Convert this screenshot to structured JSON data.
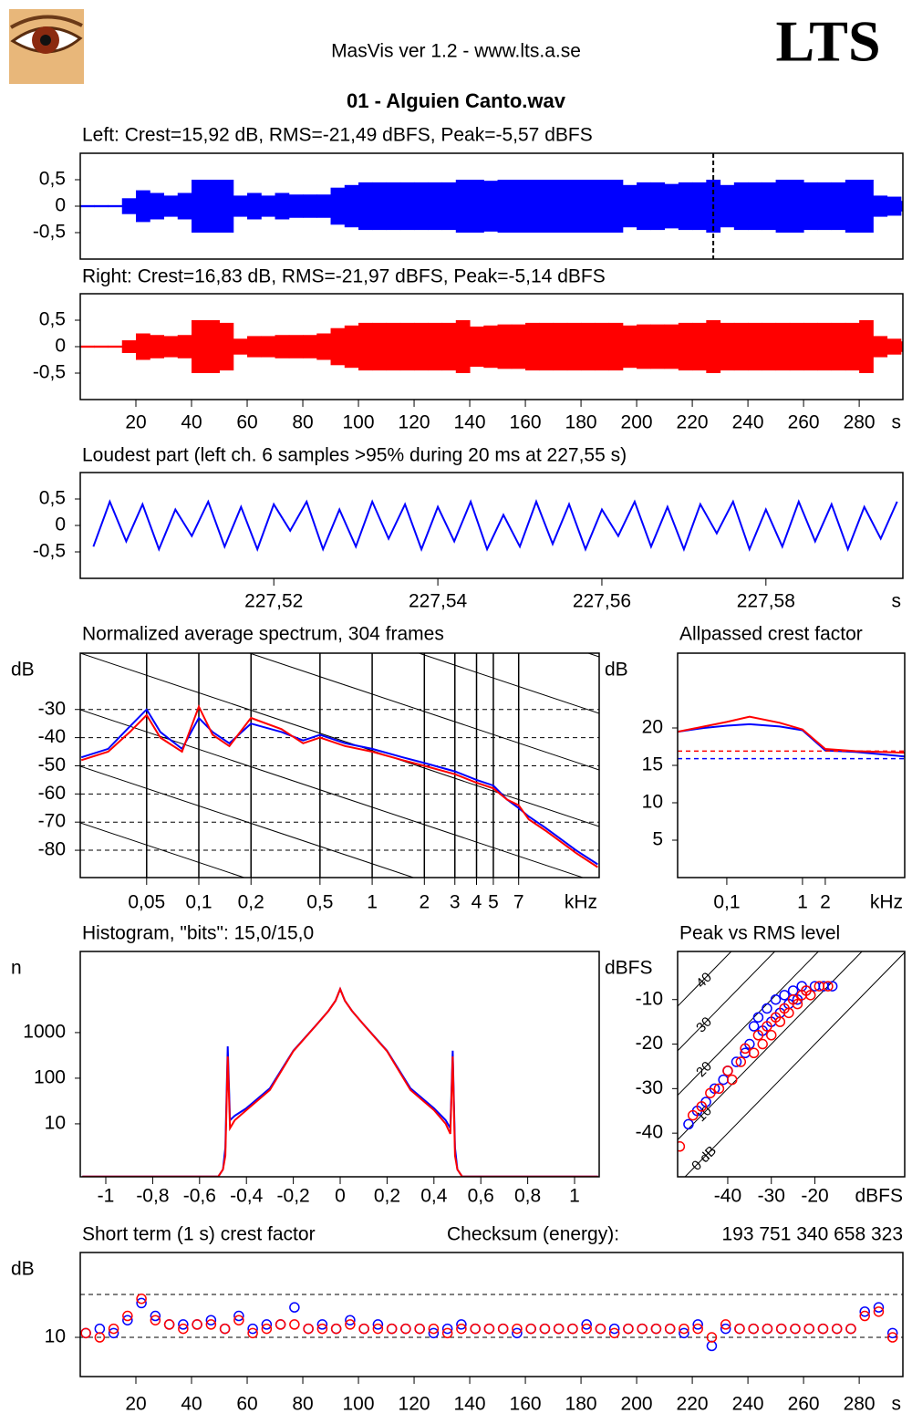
{
  "app_title": "MasVis ver 1.2 - www.lts.a.se",
  "logo_text": "LTS",
  "file_name": "01 - Alguien Canto.wav",
  "chart_data": [
    {
      "type": "envelope",
      "title": "Left: Crest=15,92 dB, RMS=-21,49 dBFS, Peak=-5,57 dBFS",
      "color": "#0000ff",
      "x": [
        0,
        5,
        10,
        15,
        20,
        25,
        30,
        35,
        40,
        45,
        50,
        55,
        60,
        65,
        70,
        75,
        80,
        85,
        90,
        95,
        100,
        105,
        110,
        115,
        120,
        125,
        130,
        135,
        140,
        145,
        150,
        155,
        160,
        165,
        170,
        175,
        180,
        185,
        190,
        195,
        200,
        205,
        210,
        215,
        220,
        225,
        230,
        235,
        240,
        245,
        250,
        255,
        260,
        265,
        270,
        275,
        280,
        285,
        290,
        295
      ],
      "values": [
        0.02,
        0.02,
        0.02,
        0.15,
        0.3,
        0.25,
        0.2,
        0.25,
        0.5,
        0.5,
        0.5,
        0.2,
        0.25,
        0.2,
        0.25,
        0.22,
        0.22,
        0.22,
        0.35,
        0.4,
        0.45,
        0.45,
        0.45,
        0.45,
        0.45,
        0.45,
        0.45,
        0.5,
        0.5,
        0.48,
        0.5,
        0.5,
        0.5,
        0.5,
        0.5,
        0.5,
        0.5,
        0.5,
        0.5,
        0.4,
        0.45,
        0.45,
        0.42,
        0.45,
        0.45,
        0.5,
        0.4,
        0.45,
        0.45,
        0.45,
        0.5,
        0.5,
        0.45,
        0.45,
        0.45,
        0.5,
        0.5,
        0.2,
        0.18,
        0.1
      ],
      "marker": 227.55,
      "xlim": [
        0,
        295.7
      ],
      "ylim": [
        -1,
        1
      ],
      "yticks": [
        {
          "value": 0.5,
          "label": "0,5"
        },
        0,
        {
          "value": -0.5,
          "label": "-0,5"
        }
      ]
    },
    {
      "type": "envelope",
      "title": "Right: Crest=16,83 dB, RMS=-21,97 dBFS, Peak=-5,14 dBFS",
      "color": "#ff0000",
      "x": [
        0,
        5,
        10,
        15,
        20,
        25,
        30,
        35,
        40,
        45,
        50,
        55,
        60,
        65,
        70,
        75,
        80,
        85,
        90,
        95,
        100,
        105,
        110,
        115,
        120,
        125,
        130,
        135,
        140,
        145,
        150,
        155,
        160,
        165,
        170,
        175,
        180,
        185,
        190,
        195,
        200,
        205,
        210,
        215,
        220,
        225,
        230,
        235,
        240,
        245,
        250,
        255,
        260,
        265,
        270,
        275,
        280,
        285,
        290,
        295
      ],
      "values": [
        0.02,
        0.02,
        0.02,
        0.12,
        0.25,
        0.22,
        0.2,
        0.22,
        0.5,
        0.5,
        0.45,
        0.15,
        0.2,
        0.2,
        0.22,
        0.22,
        0.22,
        0.25,
        0.35,
        0.4,
        0.45,
        0.45,
        0.45,
        0.45,
        0.45,
        0.45,
        0.45,
        0.5,
        0.38,
        0.4,
        0.42,
        0.42,
        0.45,
        0.45,
        0.45,
        0.45,
        0.45,
        0.45,
        0.45,
        0.4,
        0.42,
        0.42,
        0.42,
        0.45,
        0.45,
        0.5,
        0.45,
        0.45,
        0.45,
        0.45,
        0.45,
        0.45,
        0.45,
        0.45,
        0.45,
        0.45,
        0.5,
        0.2,
        0.15,
        0.1
      ],
      "xlim": [
        0,
        295.7
      ],
      "ylim": [
        -1,
        1
      ],
      "yticks": [
        {
          "value": 0.5,
          "label": "0,5"
        },
        0,
        {
          "value": -0.5,
          "label": "-0,5"
        }
      ],
      "xticks": [
        20,
        40,
        60,
        80,
        100,
        120,
        140,
        160,
        180,
        200,
        220,
        240,
        260,
        280
      ],
      "x_unit": "s"
    },
    {
      "type": "line",
      "title": "Loudest part (left  ch. 6 samples >95% during 20 ms at 227,55 s)",
      "x": [
        227.498,
        227.5,
        227.502,
        227.504,
        227.506,
        227.508,
        227.51,
        227.512,
        227.514,
        227.516,
        227.518,
        227.52,
        227.522,
        227.524,
        227.526,
        227.528,
        227.53,
        227.532,
        227.534,
        227.536,
        227.538,
        227.54,
        227.542,
        227.544,
        227.546,
        227.548,
        227.55,
        227.552,
        227.554,
        227.556,
        227.558,
        227.56,
        227.562,
        227.564,
        227.566,
        227.568,
        227.57,
        227.572,
        227.574,
        227.576,
        227.578,
        227.58,
        227.582,
        227.584,
        227.586,
        227.588,
        227.59,
        227.592,
        227.594,
        227.596
      ],
      "series": [
        {
          "color": "#0000ff",
          "values": [
            -0.4,
            0.45,
            -0.3,
            0.4,
            -0.45,
            0.3,
            -0.2,
            0.45,
            -0.4,
            0.35,
            -0.45,
            0.4,
            -0.1,
            0.45,
            -0.45,
            0.3,
            -0.4,
            0.45,
            -0.25,
            0.4,
            -0.45,
            0.35,
            -0.3,
            0.45,
            -0.45,
            0.2,
            -0.4,
            0.45,
            -0.35,
            0.4,
            -0.45,
            0.3,
            -0.2,
            0.45,
            -0.4,
            0.35,
            -0.45,
            0.4,
            -0.15,
            0.45,
            -0.45,
            0.3,
            -0.4,
            0.45,
            -0.3,
            0.4,
            -0.45,
            0.35,
            -0.25,
            0.45
          ]
        }
      ],
      "xlim": [
        227.4964,
        227.5967
      ],
      "ylim": [
        -1,
        1
      ],
      "yticks": [
        {
          "value": 0.5,
          "label": "0,5"
        },
        0,
        {
          "value": -0.5,
          "label": "-0,5"
        }
      ],
      "xticks": [
        {
          "value": 227.52,
          "label": "227,52"
        },
        {
          "value": 227.54,
          "label": "227,54"
        },
        {
          "value": 227.56,
          "label": "227,56"
        },
        {
          "value": 227.58,
          "label": "227,58"
        }
      ],
      "x_unit": "s"
    },
    {
      "type": "line",
      "title": "Normalized average spectrum, 304 frames",
      "x_log": true,
      "grid": true,
      "y_unit": "dB",
      "x_unit": "kHz",
      "x": [
        0.021,
        0.03,
        0.04,
        0.05,
        0.06,
        0.08,
        0.1,
        0.12,
        0.15,
        0.2,
        0.3,
        0.4,
        0.5,
        0.7,
        1,
        1.5,
        2,
        3,
        4,
        5,
        6,
        7,
        8,
        10,
        15,
        20
      ],
      "series": [
        {
          "color": "#0000ff",
          "values": [
            -47,
            -44,
            -36,
            -30,
            -38,
            -44,
            -33,
            -38,
            -42,
            -35,
            -38,
            -41,
            -39,
            -42,
            -44,
            -47,
            -49,
            -52,
            -55,
            -57,
            -62,
            -65,
            -68,
            -72,
            -80,
            -85
          ]
        },
        {
          "color": "#ff0000",
          "values": [
            -48,
            -45,
            -38,
            -32,
            -40,
            -45,
            -29,
            -39,
            -43,
            -33,
            -37,
            -42,
            -40,
            -43,
            -45,
            -48,
            -50,
            -53,
            -56,
            -58,
            -62,
            -64,
            -69,
            -73,
            -81,
            -86
          ]
        }
      ],
      "xlim": [
        0.0207,
        20.4
      ],
      "ylim": [
        -89.7,
        -10
      ],
      "yticks": [
        -30,
        -40,
        -50,
        -60,
        -70,
        -80
      ],
      "xticks": [
        {
          "value": 0.05,
          "label": "0,05"
        },
        {
          "value": 0.1,
          "label": "0,1"
        },
        {
          "value": 0.2,
          "label": "0,2"
        },
        {
          "value": 0.5,
          "label": "0,5"
        },
        1,
        2,
        3,
        4,
        5,
        7
      ]
    },
    {
      "type": "line",
      "title": "Allpassed crest factor",
      "x_log": true,
      "y_unit": "dB",
      "x_unit": "kHz",
      "x": [
        0.0224,
        0.05,
        0.1,
        0.2,
        0.5,
        1,
        2,
        5,
        22.4
      ],
      "series": [
        {
          "color": "#0000ff",
          "values": [
            19.5,
            20,
            20.3,
            20.5,
            20.2,
            19.7,
            17,
            16.8,
            16.2
          ],
          "mean": 15.9
        },
        {
          "color": "#ff0000",
          "values": [
            19.5,
            20.2,
            20.8,
            21.5,
            20.7,
            19.8,
            17.2,
            16.9,
            16.7
          ],
          "mean": 16.9
        }
      ],
      "xlim": [
        0.0224,
        22.4
      ],
      "ylim": [
        0,
        30
      ],
      "yticks": [
        20,
        15,
        10,
        5
      ],
      "xticks": [
        {
          "value": 0.1,
          "label": "0,1"
        },
        1,
        2
      ]
    },
    {
      "type": "line",
      "title": "Histogram, \"bits\": 15,0/15,0",
      "y_log": true,
      "y_unit": "n",
      "x": [
        -1.1,
        -0.52,
        -0.5,
        -0.49,
        -0.48,
        -0.47,
        -0.45,
        -0.4,
        -0.3,
        -0.2,
        -0.1,
        -0.05,
        -0.02,
        0,
        0.02,
        0.05,
        0.1,
        0.2,
        0.3,
        0.4,
        0.45,
        0.47,
        0.48,
        0.49,
        0.5,
        0.52,
        1.1
      ],
      "series": [
        {
          "color": "#0000ff",
          "values": [
            0.7,
            0.7,
            1,
            3,
            500,
            12,
            15,
            22,
            60,
            400,
            1500,
            3000,
            5000,
            9000,
            5000,
            3000,
            1500,
            400,
            60,
            22,
            12,
            8,
            400,
            3,
            1,
            0.7,
            0.7
          ]
        },
        {
          "color": "#ff0000",
          "values": [
            0.7,
            0.7,
            1,
            2,
            300,
            8,
            12,
            20,
            55,
            390,
            1500,
            3000,
            5000,
            9000,
            5000,
            3000,
            1500,
            390,
            55,
            20,
            10,
            6,
            300,
            2,
            1,
            0.7,
            0.7
          ]
        }
      ],
      "xlim": [
        -1.109,
        1.105
      ],
      "ylim": [
        0.69,
        60000
      ],
      "yticks": [
        1000,
        100,
        10
      ],
      "xticks": [
        -1,
        {
          "value": -0.8,
          "label": "-0,8"
        },
        {
          "value": -0.6,
          "label": "-0,6"
        },
        {
          "value": -0.4,
          "label": "-0,4"
        },
        {
          "value": -0.2,
          "label": "-0,2"
        },
        0,
        {
          "value": 0.2,
          "label": "0,2"
        },
        {
          "value": 0.4,
          "label": "0,4"
        },
        {
          "value": 0.6,
          "label": "0,6"
        },
        {
          "value": 0.8,
          "label": "0,8"
        },
        1
      ]
    },
    {
      "type": "scatter",
      "title": "Peak vs RMS level",
      "y_unit": "dBFS",
      "x_unit": "dBFS",
      "crest_lines": [
        {
          "value": 40,
          "label": "40"
        },
        {
          "value": 30,
          "label": "30"
        },
        {
          "value": 20,
          "label": "20"
        },
        {
          "value": 10,
          "label": "10"
        },
        {
          "value": 0,
          "label": "0 dB"
        }
      ],
      "series": [
        {
          "color": "#0000ff",
          "x": [
            -49,
            -47,
            -45,
            -43,
            -41,
            -40,
            -38,
            -36,
            -35,
            -34,
            -33,
            -32,
            -31,
            -30,
            -29,
            -28,
            -27,
            -26,
            -25,
            -24,
            -23,
            -22,
            -20,
            -18,
            -16
          ],
          "values": [
            -38,
            -35,
            -33,
            -30,
            -28,
            -26,
            -24,
            -22,
            -20,
            -16,
            -14,
            -17,
            -12,
            -15,
            -10,
            -13,
            -9,
            -11,
            -8,
            -10,
            -7,
            -8,
            -7,
            -7,
            -7
          ]
        },
        {
          "color": "#ff0000",
          "x": [
            -51,
            -48,
            -46,
            -44,
            -42,
            -40,
            -39,
            -37,
            -36,
            -34,
            -33,
            -32,
            -31,
            -30,
            -29,
            -28,
            -27,
            -26,
            -25,
            -24,
            -23,
            -22,
            -21,
            -19,
            -17
          ],
          "values": [
            -43,
            -36,
            -34,
            -31,
            -30,
            -26,
            -28,
            -24,
            -21,
            -22,
            -18,
            -20,
            -16,
            -18,
            -14,
            -15,
            -12,
            -13,
            -10,
            -11,
            -9,
            -8,
            -9,
            -7,
            -7
          ]
        }
      ],
      "xlim": [
        -51.5,
        0.6
      ],
      "ylim": [
        -49.8,
        0.8
      ],
      "yticks": [
        -10,
        -20,
        -30,
        -40
      ],
      "xticks": [
        -40,
        -30,
        -20
      ]
    },
    {
      "type": "scatter",
      "title": "Short term (1 s) crest factor",
      "checksum_label": "Checksum (energy):",
      "checksum": "193 751 340 658 323",
      "y_unit": "dB",
      "x_unit": "s",
      "x": [
        2,
        7,
        12,
        17,
        22,
        27,
        32,
        37,
        42,
        47,
        52,
        57,
        62,
        67,
        72,
        77,
        82,
        87,
        92,
        97,
        102,
        107,
        112,
        117,
        122,
        127,
        132,
        137,
        142,
        147,
        152,
        157,
        162,
        167,
        172,
        177,
        182,
        187,
        192,
        197,
        202,
        207,
        212,
        217,
        222,
        227,
        232,
        237,
        242,
        247,
        252,
        257,
        262,
        267,
        272,
        277,
        282,
        287,
        292
      ],
      "series": [
        {
          "color": "#0000ff",
          "values": [
            11,
            12,
            11,
            14,
            18,
            15,
            13,
            13,
            13,
            14,
            12,
            15,
            12,
            13,
            13,
            17,
            12,
            13,
            12,
            14,
            12,
            13,
            12,
            12,
            12,
            11,
            12,
            13,
            12,
            12,
            12,
            11,
            12,
            12,
            12,
            12,
            13,
            12,
            12,
            12,
            12,
            12,
            12,
            11,
            13,
            8,
            12,
            12,
            12,
            12,
            12,
            12,
            12,
            12,
            12,
            12,
            16,
            17,
            11
          ]
        },
        {
          "color": "#ff0000",
          "values": [
            11,
            10,
            12,
            15,
            19,
            14,
            13,
            12,
            13,
            13,
            12,
            14,
            11,
            12,
            13,
            13,
            12,
            12,
            12,
            13,
            12,
            12,
            12,
            12,
            12,
            12,
            11,
            12,
            12,
            12,
            12,
            12,
            12,
            12,
            12,
            12,
            12,
            12,
            11,
            12,
            12,
            12,
            12,
            12,
            12,
            10,
            13,
            12,
            12,
            12,
            12,
            12,
            12,
            12,
            12,
            12,
            15,
            16,
            10
          ]
        }
      ],
      "ref_lines": [
        20,
        10
      ],
      "xlim": [
        0,
        295.7
      ],
      "ylim": [
        0.85,
        29.8
      ],
      "yticks": [
        10
      ],
      "xticks": [
        20,
        40,
        60,
        80,
        100,
        120,
        140,
        160,
        180,
        200,
        220,
        240,
        260,
        280
      ]
    }
  ]
}
